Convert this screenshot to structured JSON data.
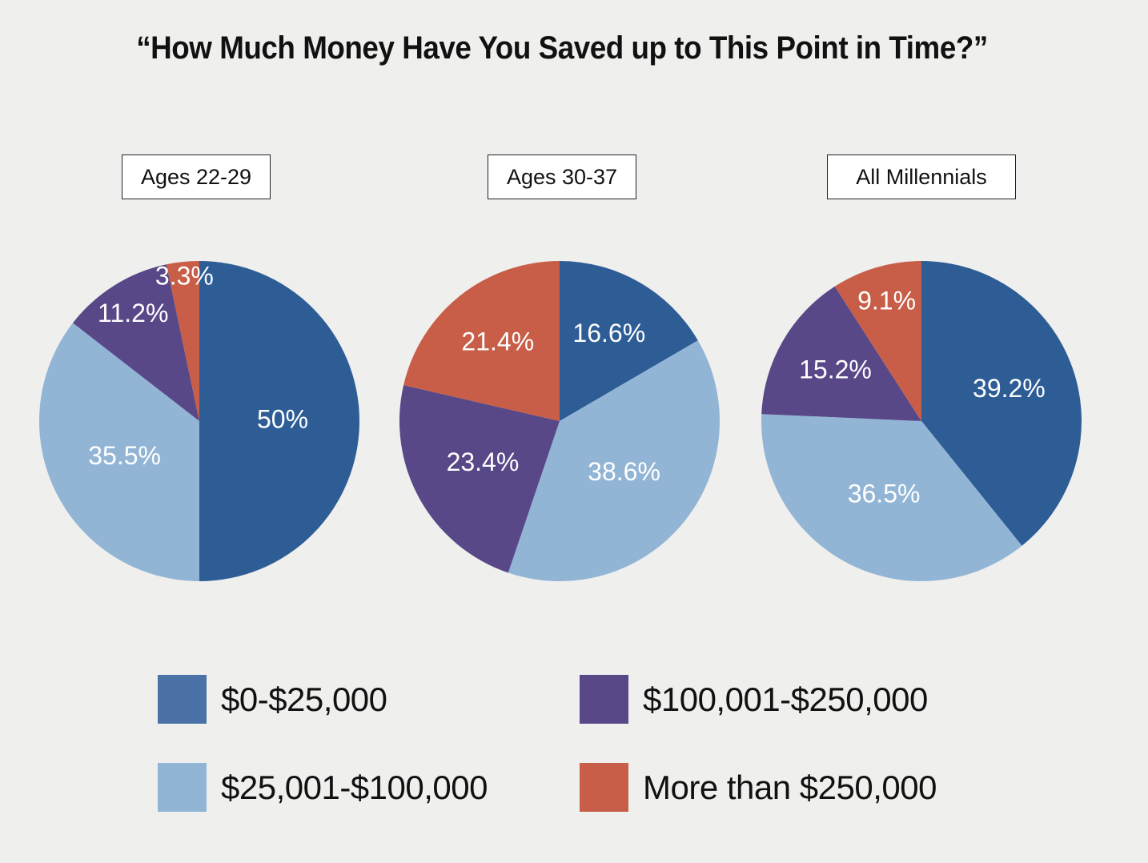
{
  "chart_data": {
    "type": "pie",
    "title": "“How Much Money Have You Saved up to This Point in Time?”",
    "categories": [
      "$0-$25,000",
      "$25,001-$100,000",
      "$100,001-$250,000",
      "More than $250,000"
    ],
    "colors": {
      "$0-$25,000": "#2e5d96",
      "$25,001-$100,000": "#92b5d6",
      "$100,001-$250,000": "#584888",
      "More than $250,000": "#c85e48"
    },
    "legend_swatch_colors": [
      "#4a72a6",
      "#92b5d6",
      "#584888",
      "#c85e48"
    ],
    "charts": [
      {
        "label": "Ages 22-29",
        "values": [
          50,
          35.5,
          11.2,
          3.3
        ],
        "labels": [
          "50%",
          "35.5%",
          "11.2%",
          "3.3%"
        ]
      },
      {
        "label": "Ages 30-37",
        "values": [
          16.6,
          38.6,
          23.4,
          21.4
        ],
        "labels": [
          "16.6%",
          "38.6%",
          "23.4%",
          "21.4%"
        ]
      },
      {
        "label": "All Millennials",
        "values": [
          39.2,
          36.5,
          15.2,
          9.1
        ],
        "labels": [
          "39.2%",
          "36.5%",
          "15.2%",
          "9.1%"
        ]
      }
    ]
  }
}
